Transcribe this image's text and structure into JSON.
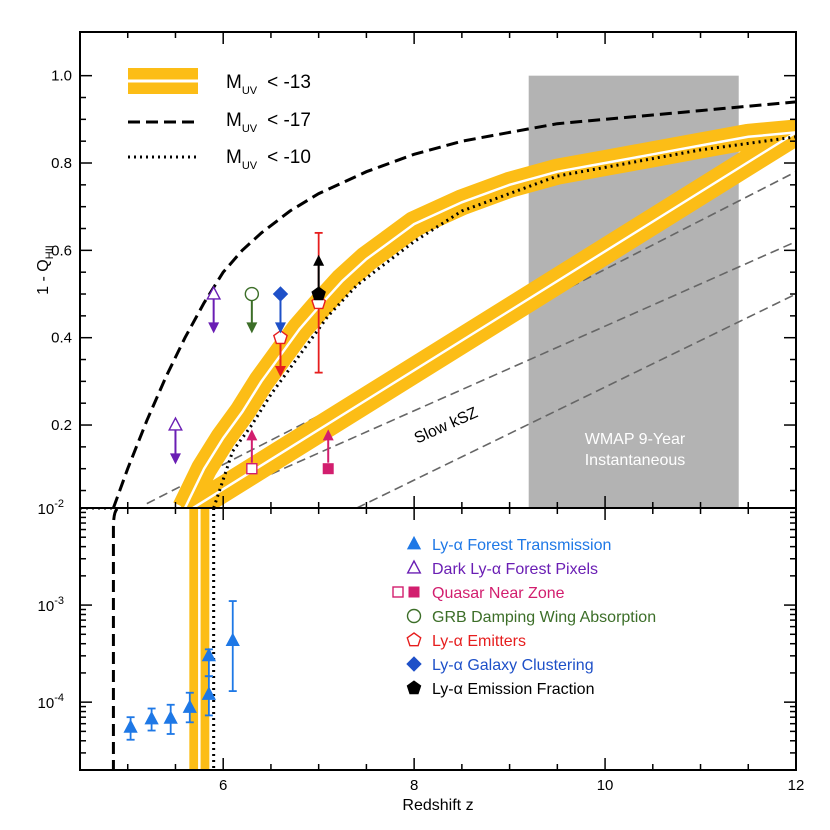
{
  "chart_data": {
    "type": "line",
    "xlabel": "Redshift z",
    "ylabel_main": "1 - Q",
    "ylabel_sub": "HII",
    "xlim": [
      4.5,
      12
    ],
    "x_ticks": [
      "6",
      "8",
      "10",
      "12"
    ],
    "top_panel": {
      "scale": "linear",
      "ylim": [
        0.01,
        1.1
      ],
      "y_ticks": [
        "0.2",
        "0.4",
        "0.6",
        "0.8",
        "1.0"
      ]
    },
    "bottom_panel": {
      "scale": "log",
      "ylim": [
        2e-05,
        0.01
      ],
      "y_tick_base": "10",
      "y_tick_exponents": [
        "-4",
        "-3",
        "-2"
      ]
    },
    "model_legend": [
      {
        "name_main": "M",
        "name_sub": "UV",
        "cut": "< -13",
        "style": "band"
      },
      {
        "name_main": "M",
        "name_sub": "UV",
        "cut": "< -17",
        "style": "dashed"
      },
      {
        "name_main": "M",
        "name_sub": "UV",
        "cut": "< -10",
        "style": "dotted"
      }
    ],
    "models": {
      "band_center": {
        "x": [
          5.6,
          5.8,
          6.0,
          6.2,
          6.4,
          6.6,
          6.8,
          7.0,
          7.25,
          7.5,
          7.75,
          8.0,
          8.5,
          9.0,
          9.5,
          10.0,
          10.5,
          11.0,
          11.5,
          12.0
        ],
        "y": [
          0.01,
          0.1,
          0.17,
          0.23,
          0.3,
          0.36,
          0.42,
          0.47,
          0.53,
          0.58,
          0.62,
          0.66,
          0.71,
          0.75,
          0.78,
          0.8,
          0.82,
          0.84,
          0.86,
          0.87
        ]
      },
      "dashed_top": {
        "x": [
          4.85,
          5.0,
          5.2,
          5.4,
          5.6,
          5.8,
          6.0,
          6.2,
          6.4,
          6.7,
          7.0,
          7.5,
          8.0,
          8.5,
          9.0,
          9.5,
          10.0,
          10.5,
          11.0,
          11.5,
          12.0
        ],
        "y": [
          0.01,
          0.1,
          0.21,
          0.31,
          0.4,
          0.48,
          0.55,
          0.6,
          0.64,
          0.69,
          0.73,
          0.78,
          0.82,
          0.85,
          0.87,
          0.89,
          0.9,
          0.91,
          0.92,
          0.93,
          0.94
        ]
      },
      "dotted_top": {
        "x": [
          5.9,
          6.1,
          6.3,
          6.5,
          6.7,
          6.9,
          7.1,
          7.4,
          7.7,
          8.0,
          8.5,
          9.0,
          9.5,
          10.0,
          10.5,
          11.0,
          11.5,
          12.0
        ],
        "y": [
          0.01,
          0.14,
          0.2,
          0.27,
          0.33,
          0.39,
          0.45,
          0.52,
          0.57,
          0.62,
          0.69,
          0.73,
          0.77,
          0.79,
          0.81,
          0.83,
          0.845,
          0.86
        ]
      },
      "band_bottom_x": 5.75,
      "dashed_bottom_x": 4.85,
      "dotted_bottom_x": 5.9
    },
    "slow_ksz": {
      "label": "Slow kSZ",
      "lines": [
        {
          "x": [
            5.2,
            12
          ],
          "y": [
            0.02,
            0.78
          ]
        },
        {
          "x": [
            5.7,
            12
          ],
          "y": [
            0.01,
            0.62
          ]
        },
        {
          "x": [
            7.4,
            12
          ],
          "y": [
            0.01,
            0.5
          ]
        }
      ]
    },
    "wmap": {
      "label_line1": "WMAP 9-Year",
      "label_line2": "Instantaneous",
      "x": [
        9.2,
        11.4
      ],
      "y": [
        0.01,
        1.0
      ],
      "color": "#b3b3b3"
    },
    "data_legend": [
      {
        "label": "Ly-α Forest Transmission",
        "color": "#1e78e6",
        "marker": "tri-filled"
      },
      {
        "label": "Dark Ly-α Forest Pixels",
        "color": "#6a1eb4",
        "marker": "tri-open"
      },
      {
        "label": "Quasar Near Zone",
        "color": "#d21e6e",
        "marker": "square-pair"
      },
      {
        "label": "GRB Damping Wing Absorption",
        "color": "#3c6e28",
        "marker": "circle-open"
      },
      {
        "label": "Ly-α Emitters",
        "color": "#e61e1e",
        "marker": "pent-open"
      },
      {
        "label": "Ly-α Galaxy Clustering",
        "color": "#1e50c8",
        "marker": "diamond-filled"
      },
      {
        "label": "Ly-α Emission Fraction",
        "color": "#000000",
        "marker": "pent-filled"
      }
    ],
    "observations": {
      "forest_transmission": {
        "color": "#1e78e6",
        "points": [
          {
            "x": 5.03,
            "y": 5.5e-05,
            "lo": 4.1e-05,
            "hi": 7e-05
          },
          {
            "x": 5.25,
            "y": 6.7e-05,
            "lo": 5.1e-05,
            "hi": 8.6e-05
          },
          {
            "x": 5.45,
            "y": 6.8e-05,
            "lo": 4.7e-05,
            "hi": 9.4e-05
          },
          {
            "x": 5.65,
            "y": 8.8e-05,
            "lo": 6.2e-05,
            "hi": 0.000125
          },
          {
            "x": 5.85,
            "y": 0.00012,
            "lo": 7.3e-05,
            "hi": 0.000185
          },
          {
            "x": 5.85,
            "y": 0.0003,
            "lo": 0.000185,
            "hi": 0.00035
          },
          {
            "x": 6.1,
            "y": 0.00043,
            "lo": 0.00013,
            "hi": 0.0011
          }
        ]
      },
      "dark_pixels": {
        "color": "#6a1eb4",
        "points": [
          {
            "x": 5.5,
            "y": 0.2,
            "to": 0.11
          },
          {
            "x": 5.9,
            "y": 0.5,
            "to": 0.41
          }
        ]
      },
      "quasar_near_zone": {
        "color": "#d21e6e",
        "points": [
          {
            "x": 6.3,
            "y": 0.1,
            "to": 0.19,
            "filled": false
          },
          {
            "x": 7.1,
            "y": 0.1,
            "to": 0.19,
            "filled": true
          }
        ]
      },
      "grb": {
        "color": "#3c6e28",
        "points": [
          {
            "x": 6.3,
            "y": 0.5,
            "to": 0.41
          }
        ]
      },
      "laes": {
        "color": "#e61e1e",
        "points": [
          {
            "x": 6.6,
            "y": 0.4,
            "to": 0.31
          },
          {
            "x": 7.0,
            "y": 0.48,
            "lo": 0.32,
            "hi": 0.64
          }
        ]
      },
      "clustering": {
        "color": "#1e50c8",
        "points": [
          {
            "x": 6.6,
            "y": 0.5,
            "to": 0.41
          }
        ]
      },
      "emission_fraction": {
        "color": "#000000",
        "points": [
          {
            "x": 7.0,
            "y": 0.5,
            "to": 0.59
          }
        ]
      }
    },
    "colors": {
      "band": "#fcbd16",
      "band_inner": "#ffffff",
      "ksz": "#666666"
    }
  }
}
